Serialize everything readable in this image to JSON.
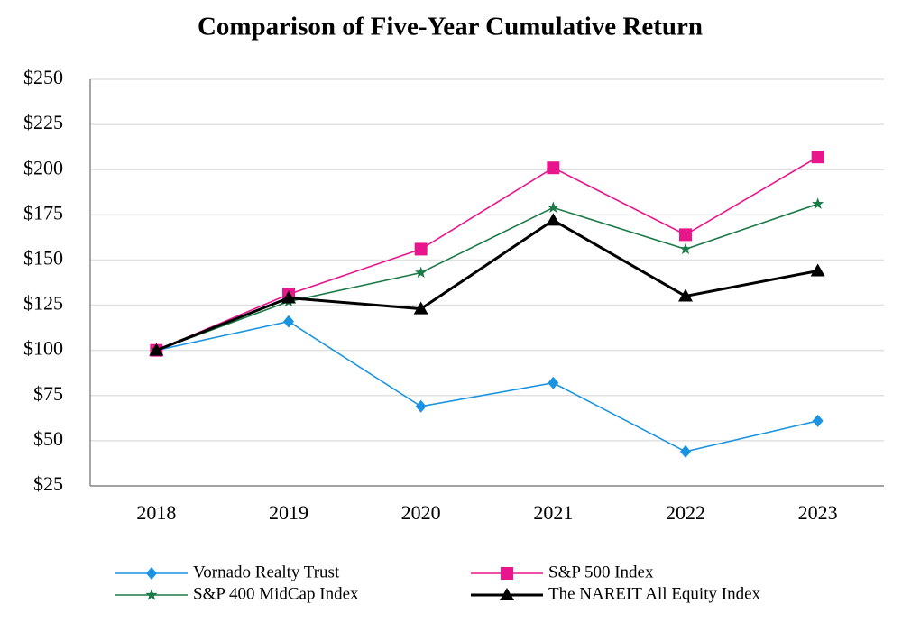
{
  "chart_data": {
    "type": "line",
    "title": "Comparison of Five-Year Cumulative Return",
    "categories": [
      "2018",
      "2019",
      "2020",
      "2021",
      "2022",
      "2023"
    ],
    "series": [
      {
        "name": "Vornado Realty Trust",
        "color": "#1a94e0",
        "marker": "diamond",
        "values": [
          100,
          116,
          69,
          82,
          44,
          61
        ]
      },
      {
        "name": "S&P 500 Index",
        "color": "#e8168c",
        "marker": "square",
        "values": [
          100,
          131,
          156,
          201,
          164,
          207
        ]
      },
      {
        "name": "S&P 400 MidCap Index",
        "color": "#1c7a48",
        "marker": "star",
        "values": [
          100,
          127,
          143,
          179,
          156,
          181
        ]
      },
      {
        "name": "The NAREIT All Equity Index",
        "color": "#000000",
        "marker": "triangle",
        "line_width": 3,
        "values": [
          100,
          129,
          123,
          172,
          130,
          144
        ]
      }
    ],
    "ylim": [
      25,
      250
    ],
    "yticks": [
      {
        "value": 25,
        "label": "$25"
      },
      {
        "value": 50,
        "label": "$50"
      },
      {
        "value": 75,
        "label": "$75"
      },
      {
        "value": 100,
        "label": "$100"
      },
      {
        "value": 125,
        "label": "$125"
      },
      {
        "value": 150,
        "label": "$150"
      },
      {
        "value": 175,
        "label": "$175"
      },
      {
        "value": 200,
        "label": "$200"
      },
      {
        "value": 225,
        "label": "$225"
      },
      {
        "value": 250,
        "label": "$250"
      }
    ],
    "grid": true
  }
}
